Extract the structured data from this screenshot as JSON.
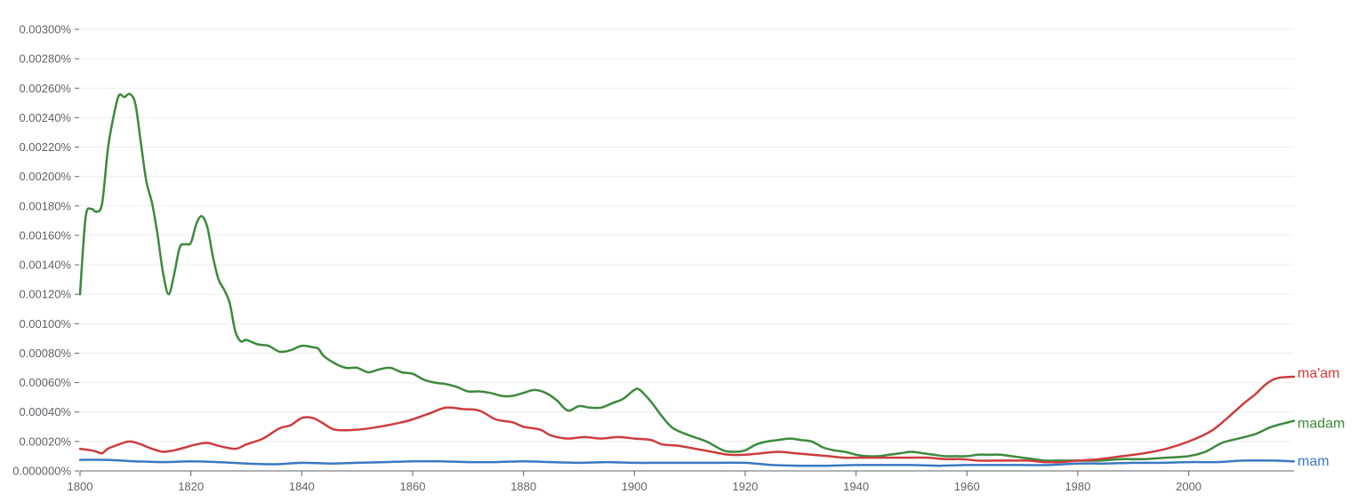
{
  "chart_data": {
    "type": "line",
    "title": "",
    "xlabel": "",
    "ylabel": "",
    "xlim": [
      1800,
      2019
    ],
    "ylim": [
      0,
      0.003
    ],
    "grid": true,
    "legend": "inline labels at right end of each line",
    "x_ticks": [
      1800,
      1820,
      1840,
      1860,
      1880,
      1900,
      1920,
      1940,
      1960,
      1980,
      2000
    ],
    "x_tick_labels": [
      "1800",
      "1820",
      "1840",
      "1860",
      "1880",
      "1900",
      "1920",
      "1940",
      "1960",
      "1980",
      "2000"
    ],
    "y_ticks": [
      0,
      0.0002,
      0.0004,
      0.0006,
      0.0008,
      0.001,
      0.0012,
      0.0014,
      0.0016,
      0.0018,
      0.002,
      0.0022,
      0.0024,
      0.0026,
      0.0028,
      0.003
    ],
    "y_tick_labels": [
      "0.000000%",
      "0.00020%",
      "0.00040%",
      "0.00060%",
      "0.00080%",
      "0.00100%",
      "0.00120%",
      "0.00140%",
      "0.00160%",
      "0.00180%",
      "0.00200%",
      "0.00220%",
      "0.00240%",
      "0.00260%",
      "0.00280%",
      "0.00300%"
    ],
    "series": [
      {
        "name": "madam",
        "color": "#3c8a3c",
        "points": [
          [
            1800,
            0.0012
          ],
          [
            1801,
            0.00172
          ],
          [
            1802,
            0.00178
          ],
          [
            1803,
            0.00176
          ],
          [
            1804,
            0.00182
          ],
          [
            1805,
            0.00218
          ],
          [
            1806,
            0.0024
          ],
          [
            1807,
            0.00255
          ],
          [
            1808,
            0.00254
          ],
          [
            1809,
            0.00256
          ],
          [
            1810,
            0.00249
          ],
          [
            1811,
            0.00222
          ],
          [
            1812,
            0.00196
          ],
          [
            1813,
            0.00182
          ],
          [
            1814,
            0.0016
          ],
          [
            1815,
            0.00134
          ],
          [
            1816,
            0.0012
          ],
          [
            1817,
            0.00134
          ],
          [
            1818,
            0.00152
          ],
          [
            1819,
            0.00154
          ],
          [
            1820,
            0.00155
          ],
          [
            1821,
            0.00168
          ],
          [
            1822,
            0.00173
          ],
          [
            1823,
            0.00165
          ],
          [
            1824,
            0.00145
          ],
          [
            1825,
            0.0013
          ],
          [
            1826,
            0.00123
          ],
          [
            1827,
            0.00114
          ],
          [
            1828,
            0.00095
          ],
          [
            1829,
            0.00088
          ],
          [
            1830,
            0.00089
          ],
          [
            1832,
            0.00086
          ],
          [
            1834,
            0.00085
          ],
          [
            1836,
            0.00081
          ],
          [
            1838,
            0.00082
          ],
          [
            1840,
            0.00085
          ],
          [
            1842,
            0.00084
          ],
          [
            1843,
            0.00083
          ],
          [
            1844,
            0.00078
          ],
          [
            1846,
            0.00073
          ],
          [
            1848,
            0.0007
          ],
          [
            1850,
            0.0007
          ],
          [
            1852,
            0.00067
          ],
          [
            1854,
            0.00069
          ],
          [
            1856,
            0.0007
          ],
          [
            1858,
            0.00067
          ],
          [
            1860,
            0.00066
          ],
          [
            1862,
            0.00062
          ],
          [
            1864,
            0.0006
          ],
          [
            1866,
            0.00059
          ],
          [
            1868,
            0.00057
          ],
          [
            1870,
            0.00054
          ],
          [
            1872,
            0.00054
          ],
          [
            1874,
            0.00053
          ],
          [
            1876,
            0.00051
          ],
          [
            1878,
            0.00051
          ],
          [
            1880,
            0.00053
          ],
          [
            1882,
            0.00055
          ],
          [
            1884,
            0.00053
          ],
          [
            1886,
            0.00048
          ],
          [
            1888,
            0.00041
          ],
          [
            1890,
            0.00044
          ],
          [
            1892,
            0.00043
          ],
          [
            1894,
            0.00043
          ],
          [
            1896,
            0.00046
          ],
          [
            1898,
            0.00049
          ],
          [
            1900,
            0.00055
          ],
          [
            1901,
            0.00055
          ],
          [
            1903,
            0.00047
          ],
          [
            1905,
            0.00037
          ],
          [
            1907,
            0.00029
          ],
          [
            1910,
            0.00024
          ],
          [
            1913,
            0.0002
          ],
          [
            1916,
            0.00014
          ],
          [
            1918,
            0.00013
          ],
          [
            1920,
            0.00014
          ],
          [
            1922,
            0.00018
          ],
          [
            1924,
            0.0002
          ],
          [
            1926,
            0.00021
          ],
          [
            1928,
            0.00022
          ],
          [
            1930,
            0.00021
          ],
          [
            1932,
            0.0002
          ],
          [
            1934,
            0.00016
          ],
          [
            1936,
            0.00014
          ],
          [
            1938,
            0.00013
          ],
          [
            1940,
            0.00011
          ],
          [
            1942,
            0.0001
          ],
          [
            1944,
            0.0001
          ],
          [
            1946,
            0.00011
          ],
          [
            1948,
            0.00012
          ],
          [
            1950,
            0.00013
          ],
          [
            1952,
            0.00012
          ],
          [
            1954,
            0.00011
          ],
          [
            1956,
            0.0001
          ],
          [
            1958,
            0.0001
          ],
          [
            1960,
            0.0001
          ],
          [
            1962,
            0.00011
          ],
          [
            1964,
            0.00011
          ],
          [
            1966,
            0.00011
          ],
          [
            1968,
            0.0001
          ],
          [
            1970,
            9e-05
          ],
          [
            1972,
            8e-05
          ],
          [
            1974,
            7e-05
          ],
          [
            1976,
            7e-05
          ],
          [
            1978,
            7e-05
          ],
          [
            1980,
            7e-05
          ],
          [
            1984,
            7e-05
          ],
          [
            1988,
            8e-05
          ],
          [
            1992,
            8e-05
          ],
          [
            1996,
            9e-05
          ],
          [
            2000,
            0.0001
          ],
          [
            2003,
            0.00013
          ],
          [
            2006,
            0.00019
          ],
          [
            2009,
            0.00022
          ],
          [
            2012,
            0.00025
          ],
          [
            2015,
            0.0003
          ],
          [
            2019,
            0.00034
          ]
        ]
      },
      {
        "name": "ma'am",
        "color": "#cc3d3d",
        "points": [
          [
            1800,
            0.00015
          ],
          [
            1802,
            0.00014
          ],
          [
            1803,
            0.00013
          ],
          [
            1804,
            0.00012
          ],
          [
            1805,
            0.00015
          ],
          [
            1807,
            0.00018
          ],
          [
            1809,
            0.0002
          ],
          [
            1811,
            0.00018
          ],
          [
            1813,
            0.00015
          ],
          [
            1815,
            0.00013
          ],
          [
            1817,
            0.00014
          ],
          [
            1819,
            0.00016
          ],
          [
            1821,
            0.00018
          ],
          [
            1823,
            0.00019
          ],
          [
            1825,
            0.00017
          ],
          [
            1828,
            0.00015
          ],
          [
            1830,
            0.00018
          ],
          [
            1833,
            0.00022
          ],
          [
            1836,
            0.00029
          ],
          [
            1838,
            0.00031
          ],
          [
            1840,
            0.00036
          ],
          [
            1842,
            0.00036
          ],
          [
            1844,
            0.00032
          ],
          [
            1846,
            0.00028
          ],
          [
            1850,
            0.00028
          ],
          [
            1854,
            0.0003
          ],
          [
            1858,
            0.00033
          ],
          [
            1860,
            0.00035
          ],
          [
            1863,
            0.00039
          ],
          [
            1866,
            0.00043
          ],
          [
            1869,
            0.00042
          ],
          [
            1872,
            0.00041
          ],
          [
            1875,
            0.00035
          ],
          [
            1878,
            0.00033
          ],
          [
            1880,
            0.0003
          ],
          [
            1883,
            0.00028
          ],
          [
            1885,
            0.00024
          ],
          [
            1888,
            0.00022
          ],
          [
            1891,
            0.00023
          ],
          [
            1894,
            0.00022
          ],
          [
            1897,
            0.00023
          ],
          [
            1900,
            0.00022
          ],
          [
            1903,
            0.00021
          ],
          [
            1905,
            0.00018
          ],
          [
            1908,
            0.00017
          ],
          [
            1911,
            0.00015
          ],
          [
            1914,
            0.00013
          ],
          [
            1917,
            0.00011
          ],
          [
            1920,
            0.00011
          ],
          [
            1923,
            0.00012
          ],
          [
            1926,
            0.00013
          ],
          [
            1929,
            0.00012
          ],
          [
            1932,
            0.00011
          ],
          [
            1935,
            0.0001
          ],
          [
            1938,
            9e-05
          ],
          [
            1941,
            9e-05
          ],
          [
            1944,
            9e-05
          ],
          [
            1947,
            9e-05
          ],
          [
            1950,
            9e-05
          ],
          [
            1953,
            9e-05
          ],
          [
            1956,
            8e-05
          ],
          [
            1959,
            8e-05
          ],
          [
            1962,
            7e-05
          ],
          [
            1965,
            7e-05
          ],
          [
            1968,
            7e-05
          ],
          [
            1971,
            7e-05
          ],
          [
            1974,
            6e-05
          ],
          [
            1977,
            6e-05
          ],
          [
            1980,
            7e-05
          ],
          [
            1984,
            8e-05
          ],
          [
            1988,
            0.0001
          ],
          [
            1992,
            0.00012
          ],
          [
            1996,
            0.00015
          ],
          [
            2000,
            0.0002
          ],
          [
            2004,
            0.00027
          ],
          [
            2007,
            0.00036
          ],
          [
            2010,
            0.00046
          ],
          [
            2012,
            0.00052
          ],
          [
            2014,
            0.00059
          ],
          [
            2016,
            0.00063
          ],
          [
            2019,
            0.00064
          ]
        ]
      },
      {
        "name": "mam",
        "color": "#3b78c2",
        "points": [
          [
            1800,
            7.5e-05
          ],
          [
            1805,
            7.5e-05
          ],
          [
            1810,
            6.5e-05
          ],
          [
            1815,
            6e-05
          ],
          [
            1820,
            6.5e-05
          ],
          [
            1825,
            6e-05
          ],
          [
            1830,
            5e-05
          ],
          [
            1835,
            4.5e-05
          ],
          [
            1840,
            5.5e-05
          ],
          [
            1845,
            5e-05
          ],
          [
            1850,
            5.5e-05
          ],
          [
            1855,
            6e-05
          ],
          [
            1860,
            6.5e-05
          ],
          [
            1865,
            6.5e-05
          ],
          [
            1870,
            6e-05
          ],
          [
            1875,
            6e-05
          ],
          [
            1880,
            6.5e-05
          ],
          [
            1885,
            6e-05
          ],
          [
            1890,
            5.5e-05
          ],
          [
            1895,
            6e-05
          ],
          [
            1900,
            5.5e-05
          ],
          [
            1905,
            5.5e-05
          ],
          [
            1910,
            5.5e-05
          ],
          [
            1915,
            5.5e-05
          ],
          [
            1920,
            5.5e-05
          ],
          [
            1925,
            4e-05
          ],
          [
            1930,
            3.5e-05
          ],
          [
            1935,
            3.5e-05
          ],
          [
            1940,
            4e-05
          ],
          [
            1945,
            4e-05
          ],
          [
            1950,
            4e-05
          ],
          [
            1955,
            3.5e-05
          ],
          [
            1960,
            4e-05
          ],
          [
            1965,
            4e-05
          ],
          [
            1970,
            4e-05
          ],
          [
            1975,
            4e-05
          ],
          [
            1980,
            5e-05
          ],
          [
            1985,
            5e-05
          ],
          [
            1990,
            5.5e-05
          ],
          [
            1995,
            5.5e-05
          ],
          [
            2000,
            6e-05
          ],
          [
            2005,
            6e-05
          ],
          [
            2010,
            7e-05
          ],
          [
            2015,
            7e-05
          ],
          [
            2019,
            6.5e-05
          ]
        ]
      }
    ]
  }
}
